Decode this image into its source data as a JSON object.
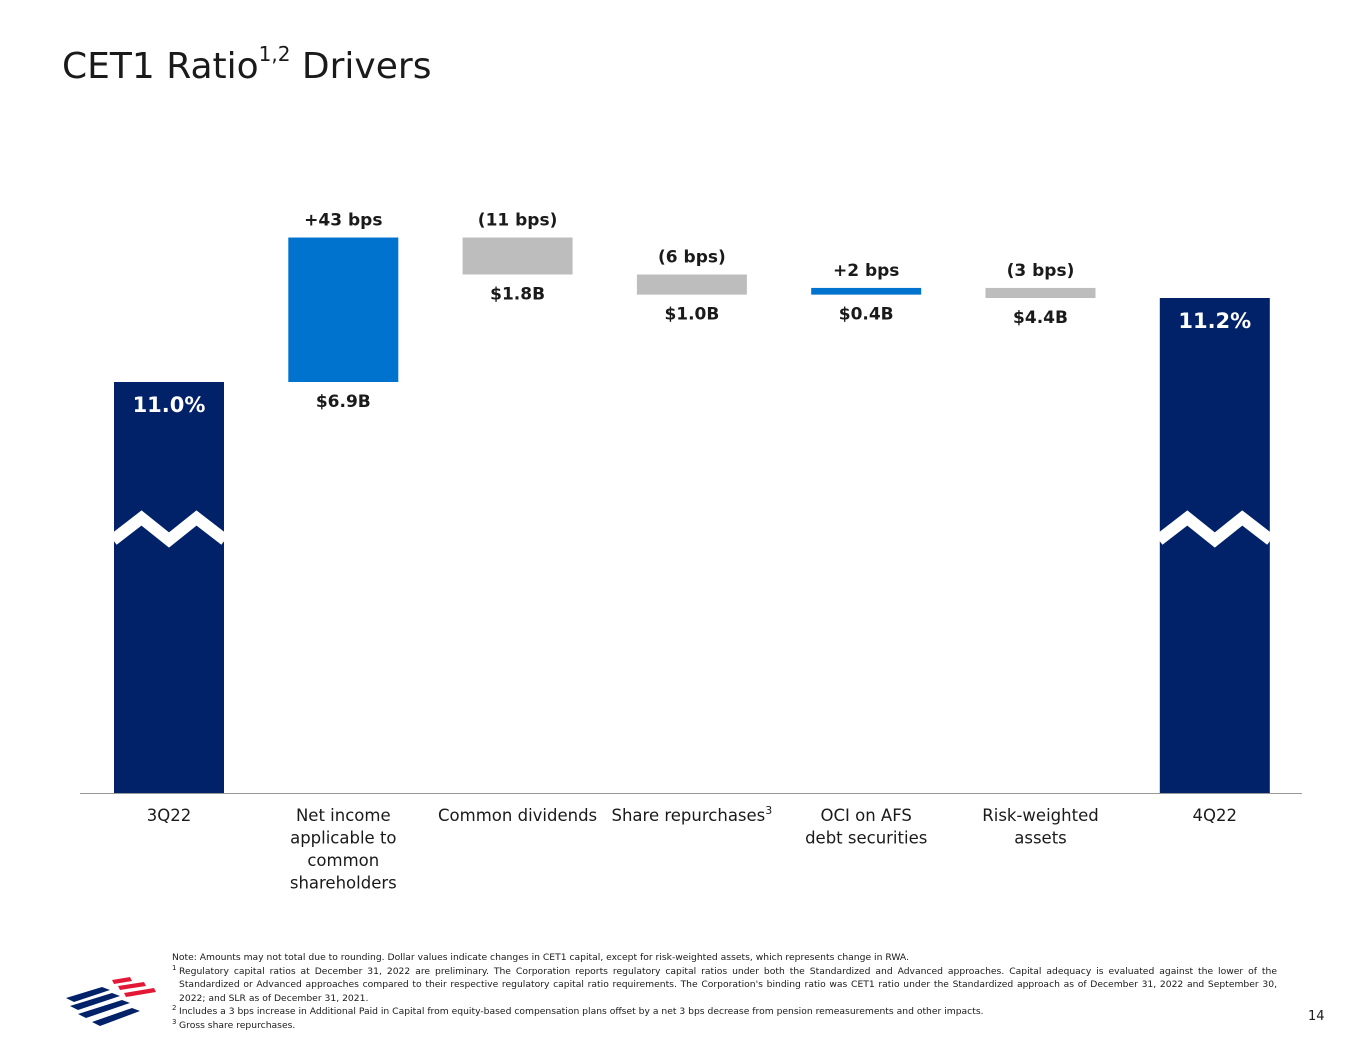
{
  "title": {
    "main": "CET1 Ratio",
    "superscript": "1,2",
    "suffix": " Drivers"
  },
  "chart_data": {
    "type": "bar",
    "subtype": "waterfall",
    "title": "CET1 Ratio Drivers",
    "unit": "bps",
    "start": {
      "category": "3Q22",
      "value": 11.0,
      "label": "11.0%"
    },
    "end": {
      "category": "4Q22",
      "value": 11.2,
      "label": "11.2%"
    },
    "steps": [
      {
        "category": "Net income applicable to common shareholders",
        "label_lines": [
          "Net income",
          "applicable to",
          "common",
          "shareholders"
        ],
        "change_bps": 43,
        "change_label": "+43 bps",
        "amount_label": "$6.9B",
        "color": "#0073cf"
      },
      {
        "category": "Common dividends",
        "label_lines": [
          "Common dividends"
        ],
        "change_bps": -11,
        "change_label": "(11 bps)",
        "amount_label": "$1.8B",
        "color": "#bdbdbd"
      },
      {
        "category": "Share repurchases",
        "label_lines": [
          "Share repurchases"
        ],
        "footnote_ref": "3",
        "change_bps": -6,
        "change_label": "(6 bps)",
        "amount_label": "$1.0B",
        "color": "#bdbdbd"
      },
      {
        "category": "OCI on AFS debt securities",
        "label_lines": [
          "OCI on AFS",
          "debt securities"
        ],
        "change_bps": 2,
        "change_label": "+2 bps",
        "amount_label": "$0.4B",
        "color": "#0073cf"
      },
      {
        "category": "Risk-weighted assets",
        "label_lines": [
          "Risk-weighted",
          "assets"
        ],
        "change_bps": -3,
        "change_label": "(3 bps)",
        "amount_label": "$4.4B",
        "color": "#bdbdbd"
      }
    ],
    "axis_break": true,
    "colors": {
      "total": "#012169",
      "increase": "#0073cf",
      "decrease": "#bdbdbd",
      "axis": "#999999"
    }
  },
  "footnotes": {
    "note": "Note: Amounts may not total due to rounding. Dollar values indicate changes in CET1 capital, except for risk-weighted assets, which represents change in RWA.",
    "items": [
      {
        "num": "1",
        "text": "Regulatory capital ratios at December 31, 2022 are preliminary. The Corporation reports regulatory capital ratios under both the Standardized and Advanced approaches. Capital adequacy is evaluated against the lower of the Standardized or Advanced approaches compared to their respective regulatory capital ratio requirements. The Corporation's binding ratio was CET1 ratio under the Standardized approach as of December 31, 2022 and September 30, 2022; and SLR as of December 31, 2021."
      },
      {
        "num": "2",
        "text": "Includes a 3 bps increase in Additional Paid in Capital from equity-based compensation plans offset by a net 3 bps decrease from pension remeasurements and other impacts."
      },
      {
        "num": "3",
        "text": "Gross share repurchases."
      }
    ]
  },
  "page_number": "14",
  "logo": {
    "name": "bank-flag-logo",
    "colors": [
      "#e31837",
      "#012169"
    ]
  }
}
